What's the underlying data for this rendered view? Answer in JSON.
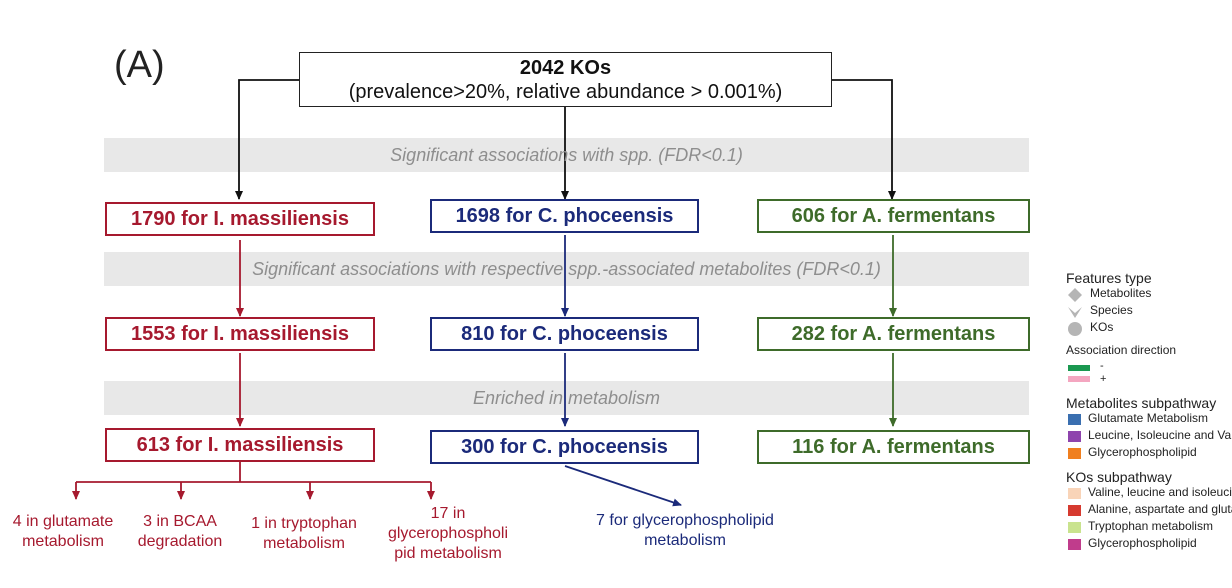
{
  "panel_label": "(A)",
  "top": {
    "line1": "2042 KOs",
    "line2": "(prevalence>20%, relative abundance > 0.001%)"
  },
  "bands": [
    "Significant associations with spp. (FDR<0.1)",
    "Significant associations with respective  spp.-associated metabolites (FDR<0.1)",
    "Enriched in metabolism"
  ],
  "rows": [
    {
      "red": "1790 for I. massiliensis",
      "blue": "1698 for C. phoceensis",
      "green": "606 for A. fermentans"
    },
    {
      "red": "1553 for I. massiliensis",
      "blue": "810 for C. phoceensis",
      "green": "282 for A. fermentans"
    },
    {
      "red": "613 for I. massiliensis",
      "blue": "300 for C. phoceensis",
      "green": "116 for A. fermentans"
    }
  ],
  "leaves_red": [
    {
      "l1": "4 in glutamate",
      "l2": "metabolism"
    },
    {
      "l1": "3 in BCAA",
      "l2": "degradation"
    },
    {
      "l1": "1 in tryptophan",
      "l2": "metabolism"
    },
    {
      "l1": "17 in",
      "l2": "glycerophospholi",
      "l3": "pid metabolism"
    }
  ],
  "leaf_blue": {
    "l1": "7 for glycerophospholipid",
    "l2": "metabolism"
  },
  "colors": {
    "red": "#a6192e",
    "blue": "#1b2a7a",
    "green": "#3e6b2a"
  },
  "legend": {
    "features_title": "Features type",
    "features": [
      {
        "label": "Metabolites",
        "icon": "diamond-icon"
      },
      {
        "label": "Species",
        "icon": "chevron-icon"
      },
      {
        "label": "KOs",
        "icon": "circle-icon"
      }
    ],
    "direction_title": "Association direction",
    "direction": [
      {
        "label": "-",
        "color": "#1a9850"
      },
      {
        "label": "+",
        "color": "#f4a6c0"
      }
    ],
    "met_title": "Metabolites subpathway",
    "met": [
      {
        "label": "Glutamate Metabolism",
        "color": "#3a6fb0"
      },
      {
        "label": "Leucine, Isoleucine and Valine Metabolism",
        "color": "#8e44ad"
      },
      {
        "label": "Glycerophospholipid",
        "color": "#f07f1f"
      }
    ],
    "ko_title": "KOs subpathway",
    "ko": [
      {
        "label": "Valine, leucine and isoleucine",
        "color": "#f9d4b8"
      },
      {
        "label": "Alanine, aspartate and glutamate",
        "color": "#d63a2f"
      },
      {
        "label": "Tryptophan metabolism",
        "color": "#c9e38e"
      },
      {
        "label": "Glycerophospholipid",
        "color": "#c03c8c"
      }
    ]
  }
}
